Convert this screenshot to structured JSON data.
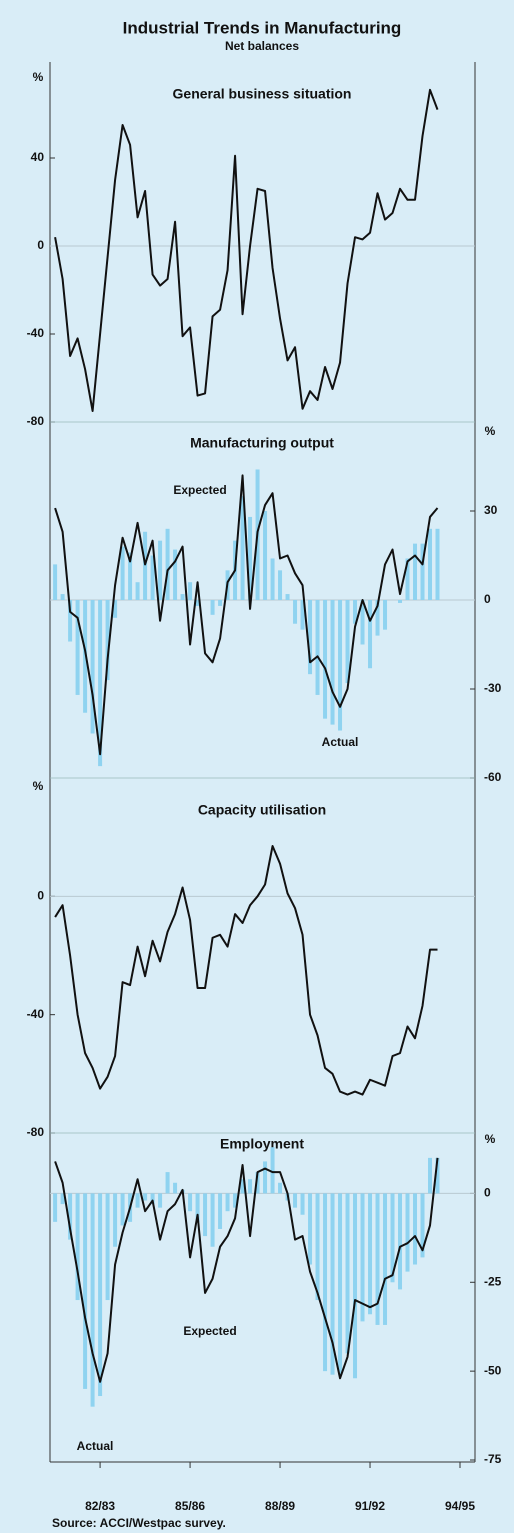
{
  "header": {
    "title": "Industrial Trends in Manufacturing",
    "subtitle": "Net balances"
  },
  "footer": {
    "source": "Source: ACCI/Westpac survey."
  },
  "chart_data": [
    {
      "type": "line",
      "title": "General business situation",
      "ylabel": "%",
      "yaxis_side": "left",
      "xlim": [
        1981.33,
        1995.5
      ],
      "ylim": [
        -80,
        80
      ],
      "yticks": [
        -80,
        -40,
        0,
        40
      ],
      "x": [
        1981.5,
        1981.75,
        1982,
        1982.25,
        1982.5,
        1982.75,
        1983,
        1983.25,
        1983.5,
        1983.75,
        1984,
        1984.25,
        1984.5,
        1984.75,
        1985,
        1985.25,
        1985.5,
        1985.75,
        1986,
        1986.25,
        1986.5,
        1986.75,
        1987,
        1987.25,
        1987.5,
        1987.75,
        1988,
        1988.25,
        1988.5,
        1988.75,
        1989,
        1989.25,
        1989.5,
        1989.75,
        1990,
        1990.25,
        1990.5,
        1990.75,
        1991,
        1991.25,
        1991.5,
        1991.75,
        1992,
        1992.25,
        1992.5,
        1992.75,
        1993,
        1993.25,
        1993.5,
        1993.75,
        1994,
        1994.25
      ],
      "series": [
        {
          "type": "line",
          "color": "#111111",
          "values": [
            4,
            -15,
            -50,
            -42,
            -56,
            -75,
            -40,
            -5,
            30,
            55,
            46,
            13,
            25,
            -13,
            -18,
            -15,
            11,
            -41,
            -37,
            -68,
            -67,
            -32,
            -29,
            -11,
            41,
            -31,
            0,
            26,
            25,
            -10,
            -33,
            -52,
            -46,
            -74,
            -66,
            -70,
            -55,
            -65,
            -53,
            -17,
            4,
            3,
            6,
            24,
            12,
            15,
            26,
            21,
            21,
            50,
            71,
            62
          ]
        }
      ]
    },
    {
      "type": "combo",
      "title": "Manufacturing output",
      "ylabel": "%",
      "yaxis_side": "right",
      "xlim": [
        1981.33,
        1995.5
      ],
      "ylim": [
        -60,
        60
      ],
      "yticks": [
        -60,
        -30,
        0,
        30
      ],
      "x": [
        1981.5,
        1981.75,
        1982,
        1982.25,
        1982.5,
        1982.75,
        1983,
        1983.25,
        1983.5,
        1983.75,
        1984,
        1984.25,
        1984.5,
        1984.75,
        1985,
        1985.25,
        1985.5,
        1985.75,
        1986,
        1986.25,
        1986.5,
        1986.75,
        1987,
        1987.25,
        1987.5,
        1987.75,
        1988,
        1988.25,
        1988.5,
        1988.75,
        1989,
        1989.25,
        1989.5,
        1989.75,
        1990,
        1990.25,
        1990.5,
        1990.75,
        1991,
        1991.25,
        1991.5,
        1991.75,
        1992,
        1992.25,
        1992.5,
        1992.75,
        1993,
        1993.25,
        1993.5,
        1993.75,
        1994,
        1994.25
      ],
      "series": [
        {
          "name": "Actual",
          "type": "bar",
          "color": "#8fd3f0",
          "values": [
            12,
            2,
            -14,
            -32,
            -38,
            -45,
            -56,
            -27,
            -6,
            18,
            16,
            6,
            23,
            15,
            20,
            24,
            17,
            2,
            6,
            -2,
            0,
            -5,
            -2,
            10,
            20,
            35,
            28,
            44,
            30,
            14,
            10,
            2,
            -8,
            -10,
            -25,
            -32,
            -40,
            -42,
            -44,
            -28,
            -8,
            -15,
            -23,
            -12,
            -10,
            0,
            -1,
            14,
            19,
            19,
            24,
            24
          ]
        },
        {
          "name": "Expected",
          "type": "line",
          "color": "#111111",
          "values": [
            31,
            23,
            -4,
            -6,
            -17,
            -32,
            -52,
            -20,
            5,
            21,
            13,
            26,
            12,
            20,
            -7,
            10,
            13,
            18,
            -15,
            6,
            -18,
            -21,
            -13,
            6,
            10,
            42,
            -3,
            23,
            32,
            36,
            14,
            15,
            9,
            5,
            -21,
            -19,
            -23,
            -31,
            -36,
            -30,
            -9,
            0,
            -7,
            -2,
            12,
            17,
            2,
            13,
            15,
            12,
            28,
            31
          ]
        }
      ]
    },
    {
      "type": "line",
      "title": "Capacity utilisation",
      "ylabel": "%",
      "yaxis_side": "left",
      "xlim": [
        1981.33,
        1995.5
      ],
      "ylim": [
        -80,
        40
      ],
      "yticks": [
        -80,
        -40,
        0
      ],
      "x": [
        1981.5,
        1981.75,
        1982,
        1982.25,
        1982.5,
        1982.75,
        1983,
        1983.25,
        1983.5,
        1983.75,
        1984,
        1984.25,
        1984.5,
        1984.75,
        1985,
        1985.25,
        1985.5,
        1985.75,
        1986,
        1986.25,
        1986.5,
        1986.75,
        1987,
        1987.25,
        1987.5,
        1987.75,
        1988,
        1988.25,
        1988.5,
        1988.75,
        1989,
        1989.25,
        1989.5,
        1989.75,
        1990,
        1990.25,
        1990.5,
        1990.75,
        1991,
        1991.25,
        1991.5,
        1991.75,
        1992,
        1992.25,
        1992.5,
        1992.75,
        1993,
        1993.25,
        1993.5,
        1993.75,
        1994,
        1994.25
      ],
      "series": [
        {
          "type": "line",
          "color": "#111111",
          "values": [
            -7,
            -3,
            -20,
            -40,
            -53,
            -58,
            -65,
            -61,
            -54,
            -29,
            -30,
            -17,
            -27,
            -15,
            -22,
            -12,
            -6,
            3,
            -8,
            -31,
            -31,
            -14,
            -13,
            -17,
            -6,
            -9,
            -3,
            0,
            4,
            17,
            11,
            1,
            -4,
            -13,
            -40,
            -47,
            -58,
            -60,
            -66,
            -67,
            -66,
            -67,
            -62,
            -63,
            -64,
            -54,
            -53,
            -44,
            -48,
            -37,
            -18,
            -18
          ]
        }
      ]
    },
    {
      "type": "combo",
      "title": "Employment",
      "ylabel": "%",
      "yaxis_side": "right",
      "xlim": [
        1981.33,
        1995.5
      ],
      "ylim": [
        -75,
        17
      ],
      "yticks": [
        -75,
        -50,
        -25,
        0
      ],
      "xticks": [
        {
          "value": 1983,
          "label": "82/83"
        },
        {
          "value": 1986,
          "label": "85/86"
        },
        {
          "value": 1989,
          "label": "88/89"
        },
        {
          "value": 1992,
          "label": "91/92"
        },
        {
          "value": 1995,
          "label": "94/95"
        }
      ],
      "x": [
        1981.5,
        1981.75,
        1982,
        1982.25,
        1982.5,
        1982.75,
        1983,
        1983.25,
        1983.5,
        1983.75,
        1984,
        1984.25,
        1984.5,
        1984.75,
        1985,
        1985.25,
        1985.5,
        1985.75,
        1986,
        1986.25,
        1986.5,
        1986.75,
        1987,
        1987.25,
        1987.5,
        1987.75,
        1988,
        1988.25,
        1988.5,
        1988.75,
        1989,
        1989.25,
        1989.5,
        1989.75,
        1990,
        1990.25,
        1990.5,
        1990.75,
        1991,
        1991.25,
        1991.5,
        1991.75,
        1992,
        1992.25,
        1992.5,
        1992.75,
        1993,
        1993.25,
        1993.5,
        1993.75,
        1994,
        1994.25
      ],
      "series": [
        {
          "name": "Actual",
          "type": "bar",
          "color": "#8fd3f0",
          "values": [
            -8,
            -3,
            -13,
            -30,
            -55,
            -60,
            -57,
            -30,
            -15,
            -9,
            -8,
            -4,
            -2,
            -3,
            -4,
            6,
            3,
            1,
            -5,
            -8,
            -12,
            -15,
            -10,
            -5,
            -4,
            4,
            4,
            6,
            9,
            13,
            3,
            -2,
            -4,
            -6,
            -20,
            -30,
            -50,
            -51,
            -51,
            -45,
            -52,
            -36,
            -34,
            -37,
            -37,
            -25,
            -27,
            -22,
            -20,
            -18,
            10,
            10
          ]
        },
        {
          "name": "Expected",
          "type": "line",
          "color": "#111111",
          "values": [
            9,
            3,
            -10,
            -22,
            -35,
            -45,
            -53,
            -45,
            -20,
            -11,
            -4,
            4,
            -5,
            -2,
            -13,
            -5,
            -3,
            1,
            -18,
            -6,
            -28,
            -24,
            -15,
            -12,
            -7,
            8,
            -12,
            6,
            7,
            6,
            6,
            0,
            -13,
            -12,
            -22,
            -28,
            -35,
            -42,
            -52,
            -46,
            -30,
            -31,
            -32,
            -31,
            -24,
            -23,
            -15,
            -14,
            -12,
            -16,
            -9,
            10
          ]
        }
      ]
    }
  ]
}
